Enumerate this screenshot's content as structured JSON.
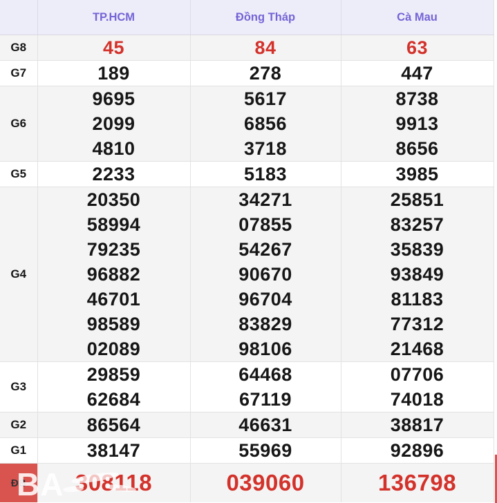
{
  "header": {
    "columns": [
      "TP.HCM",
      "Đồng Tháp",
      "Cà Mau"
    ]
  },
  "table": {
    "rows": [
      {
        "label": "G8",
        "style": "red",
        "lines": [
          [
            "45"
          ],
          [
            "84"
          ],
          [
            "63"
          ]
        ]
      },
      {
        "label": "G7",
        "style": "normal",
        "lines": [
          [
            "189"
          ],
          [
            "278"
          ],
          [
            "447"
          ]
        ]
      },
      {
        "label": "G6",
        "style": "normal",
        "lines": [
          [
            "9695",
            "2099",
            "4810"
          ],
          [
            "5617",
            "6856",
            "3718"
          ],
          [
            "8738",
            "9913",
            "8656"
          ]
        ]
      },
      {
        "label": "G5",
        "style": "normal",
        "lines": [
          [
            "2233"
          ],
          [
            "5183"
          ],
          [
            "3985"
          ]
        ]
      },
      {
        "label": "G4",
        "style": "normal",
        "lines": [
          [
            "20350",
            "58994",
            "79235",
            "96882",
            "46701",
            "98589",
            "02089"
          ],
          [
            "34271",
            "07855",
            "54267",
            "90670",
            "96704",
            "83829",
            "98106"
          ],
          [
            "25851",
            "83257",
            "35839",
            "93849",
            "81183",
            "77312",
            "21468"
          ]
        ]
      },
      {
        "label": "G3",
        "style": "normal",
        "lines": [
          [
            "29859",
            "62684"
          ],
          [
            "64468",
            "67119"
          ],
          [
            "07706",
            "74018"
          ]
        ]
      },
      {
        "label": "G2",
        "style": "normal",
        "lines": [
          [
            "86564"
          ],
          [
            "46631"
          ],
          [
            "38817"
          ]
        ]
      },
      {
        "label": "G1",
        "style": "normal",
        "lines": [
          [
            "38147"
          ],
          [
            "55969"
          ],
          [
            "92896"
          ]
        ]
      },
      {
        "label": "ĐB",
        "style": "special",
        "lines": [
          [
            "308118"
          ],
          [
            "039060"
          ],
          [
            "136798"
          ]
        ]
      }
    ]
  },
  "watermark": {
    "text": "BA"
  },
  "colors": {
    "value_red": "#d3322b",
    "header_purple": "#7465d6",
    "header_bg": "#edecf9",
    "stripe_gray": "#f4f4f4",
    "special_label_bg": "#d9534f"
  }
}
